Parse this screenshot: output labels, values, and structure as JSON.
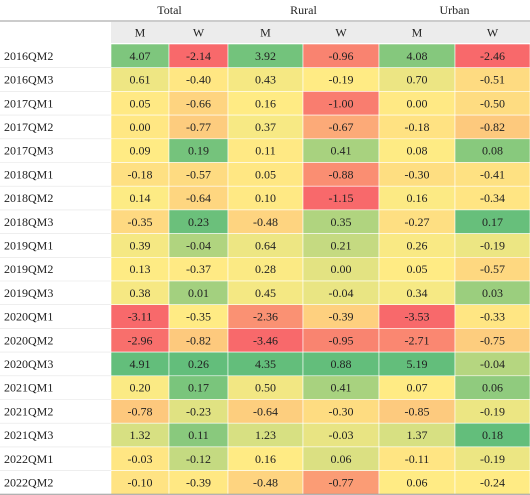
{
  "chart_data": {
    "type": "heatmap",
    "group_headers": [
      "Total",
      "Rural",
      "Urban"
    ],
    "sub_headers": [
      "M",
      "W",
      "M",
      "W",
      "M",
      "W"
    ],
    "rows": [
      "2016QM2",
      "2016QM3",
      "2017QM1",
      "2017QM2",
      "2017QM3",
      "2018QM1",
      "2018QM2",
      "2018QM3",
      "2019QM1",
      "2019QM2",
      "2019QM3",
      "2020QM1",
      "2020QM2",
      "2020QM3",
      "2021QM1",
      "2021QM2",
      "2021QM3",
      "2022QM1",
      "2022QM2"
    ],
    "values": [
      [
        "4.07",
        "-2.14",
        "3.92",
        "-0.96",
        "4.08",
        "-2.46"
      ],
      [
        "0.61",
        "-0.40",
        "0.43",
        "-0.19",
        "0.70",
        "-0.51"
      ],
      [
        "0.05",
        "-0.66",
        "0.16",
        "-1.00",
        "0.00",
        "-0.50"
      ],
      [
        "0.00",
        "-0.77",
        "0.37",
        "-0.67",
        "-0.18",
        "-0.82"
      ],
      [
        "0.09",
        "0.19",
        "0.11",
        "0.41",
        "0.08",
        "0.08"
      ],
      [
        "-0.18",
        "-0.57",
        "0.05",
        "-0.88",
        "-0.30",
        "-0.41"
      ],
      [
        "0.14",
        "-0.64",
        "0.10",
        "-1.15",
        "0.16",
        "-0.34"
      ],
      [
        "-0.35",
        "0.23",
        "-0.48",
        "0.35",
        "-0.27",
        "0.17"
      ],
      [
        "0.39",
        "-0.04",
        "0.64",
        "0.21",
        "0.26",
        "-0.19"
      ],
      [
        "0.13",
        "-0.37",
        "0.28",
        "0.00",
        "0.05",
        "-0.57"
      ],
      [
        "0.38",
        "0.01",
        "0.45",
        "-0.04",
        "0.34",
        "0.03"
      ],
      [
        "-3.11",
        "-0.35",
        "-2.36",
        "-0.39",
        "-3.53",
        "-0.33"
      ],
      [
        "-2.96",
        "-0.82",
        "-3.46",
        "-0.95",
        "-2.71",
        "-0.75"
      ],
      [
        "4.91",
        "0.26",
        "4.35",
        "0.88",
        "5.19",
        "-0.04"
      ],
      [
        "0.20",
        "0.17",
        "0.50",
        "0.41",
        "0.07",
        "0.06"
      ],
      [
        "-0.78",
        "-0.23",
        "-0.64",
        "-0.30",
        "-0.85",
        "-0.19"
      ],
      [
        "1.32",
        "0.11",
        "1.23",
        "-0.03",
        "1.37",
        "0.18"
      ],
      [
        "-0.03",
        "-0.12",
        "0.16",
        "0.06",
        "-0.11",
        "-0.19"
      ],
      [
        "-0.10",
        "-0.39",
        "-0.48",
        "-0.77",
        "0.06",
        "-0.24"
      ]
    ],
    "color_scale": {
      "low": "#f8696b",
      "mid": "#ffeb84",
      "high": "#63be7b",
      "scope": "per-column"
    },
    "grid": true
  }
}
